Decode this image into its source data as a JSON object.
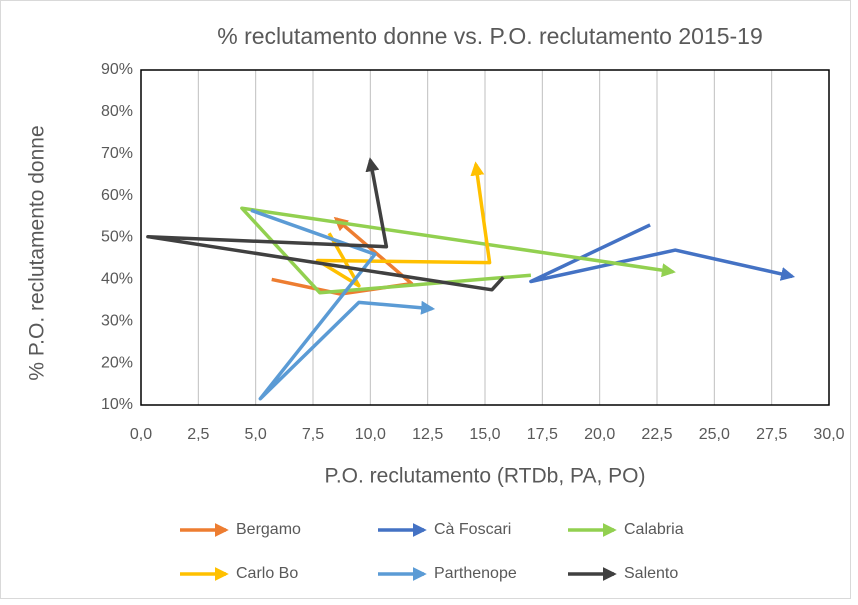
{
  "chart_data": {
    "type": "line",
    "title": "% reclutamento donne vs. P.O. reclutamento 2015-19",
    "x_label": "P.O. reclutamento (RTDb, PA, PO)",
    "y_label": "% P.O. reclutamento donne",
    "xlim": [
      0,
      30
    ],
    "ylim": [
      10,
      90
    ],
    "xticks": [
      {
        "value": 0,
        "label": "0,0"
      },
      {
        "value": 2.5,
        "label": "2,5"
      },
      {
        "value": 5,
        "label": "5,0"
      },
      {
        "value": 7.5,
        "label": "7,5"
      },
      {
        "value": 10,
        "label": "10,0"
      },
      {
        "value": 12.5,
        "label": "12,5"
      },
      {
        "value": 15,
        "label": "15,0"
      },
      {
        "value": 17.5,
        "label": "17,5"
      },
      {
        "value": 20,
        "label": "20,0"
      },
      {
        "value": 22.5,
        "label": "22,5"
      },
      {
        "value": 25,
        "label": "25,0"
      },
      {
        "value": 27.5,
        "label": "27,5"
      },
      {
        "value": 30,
        "label": "30,0"
      }
    ],
    "yticks": [
      {
        "value": 10,
        "label": "10%"
      },
      {
        "value": 20,
        "label": "20%"
      },
      {
        "value": 30,
        "label": "30%"
      },
      {
        "value": 40,
        "label": "40%"
      },
      {
        "value": 50,
        "label": "50%"
      },
      {
        "value": 60,
        "label": "60%"
      },
      {
        "value": 70,
        "label": "70%"
      },
      {
        "value": 80,
        "label": "80%"
      },
      {
        "value": 90,
        "label": "90%"
      }
    ],
    "grid": "x",
    "legend": "bottom",
    "series": [
      {
        "name": "Bergamo",
        "color": "#ed7d31",
        "x": [
          5.7,
          8.7,
          11.8,
          8.5
        ],
        "values": [
          40.0,
          36.5,
          39.0,
          54.5
        ]
      },
      {
        "name": "Cà Foscari",
        "color": "#4472c4",
        "x": [
          22.2,
          17.0,
          23.3,
          28.4
        ],
        "values": [
          53.0,
          39.5,
          47.0,
          40.7
        ]
      },
      {
        "name": "Calabria",
        "color": "#92d050",
        "x": [
          17.0,
          7.8,
          4.4,
          23.2
        ],
        "values": [
          41.0,
          36.8,
          57.0,
          41.8
        ]
      },
      {
        "name": "Carlo Bo",
        "color": "#ffc000",
        "x": [
          8.2,
          9.5,
          7.7,
          15.2,
          14.6
        ],
        "values": [
          51.0,
          38.5,
          44.5,
          44.0,
          67.5
        ]
      },
      {
        "name": "Parthenope",
        "color": "#5b9bd5",
        "x": [
          4.8,
          10.2,
          5.2,
          9.5,
          12.7
        ],
        "values": [
          56.5,
          46.0,
          11.5,
          34.5,
          33.0
        ]
      },
      {
        "name": "Salento",
        "color": "#404040",
        "x": [
          15.8,
          15.3,
          0.3,
          10.7,
          10.0
        ],
        "values": [
          40.5,
          37.5,
          50.2,
          47.8,
          68.5
        ]
      }
    ]
  }
}
